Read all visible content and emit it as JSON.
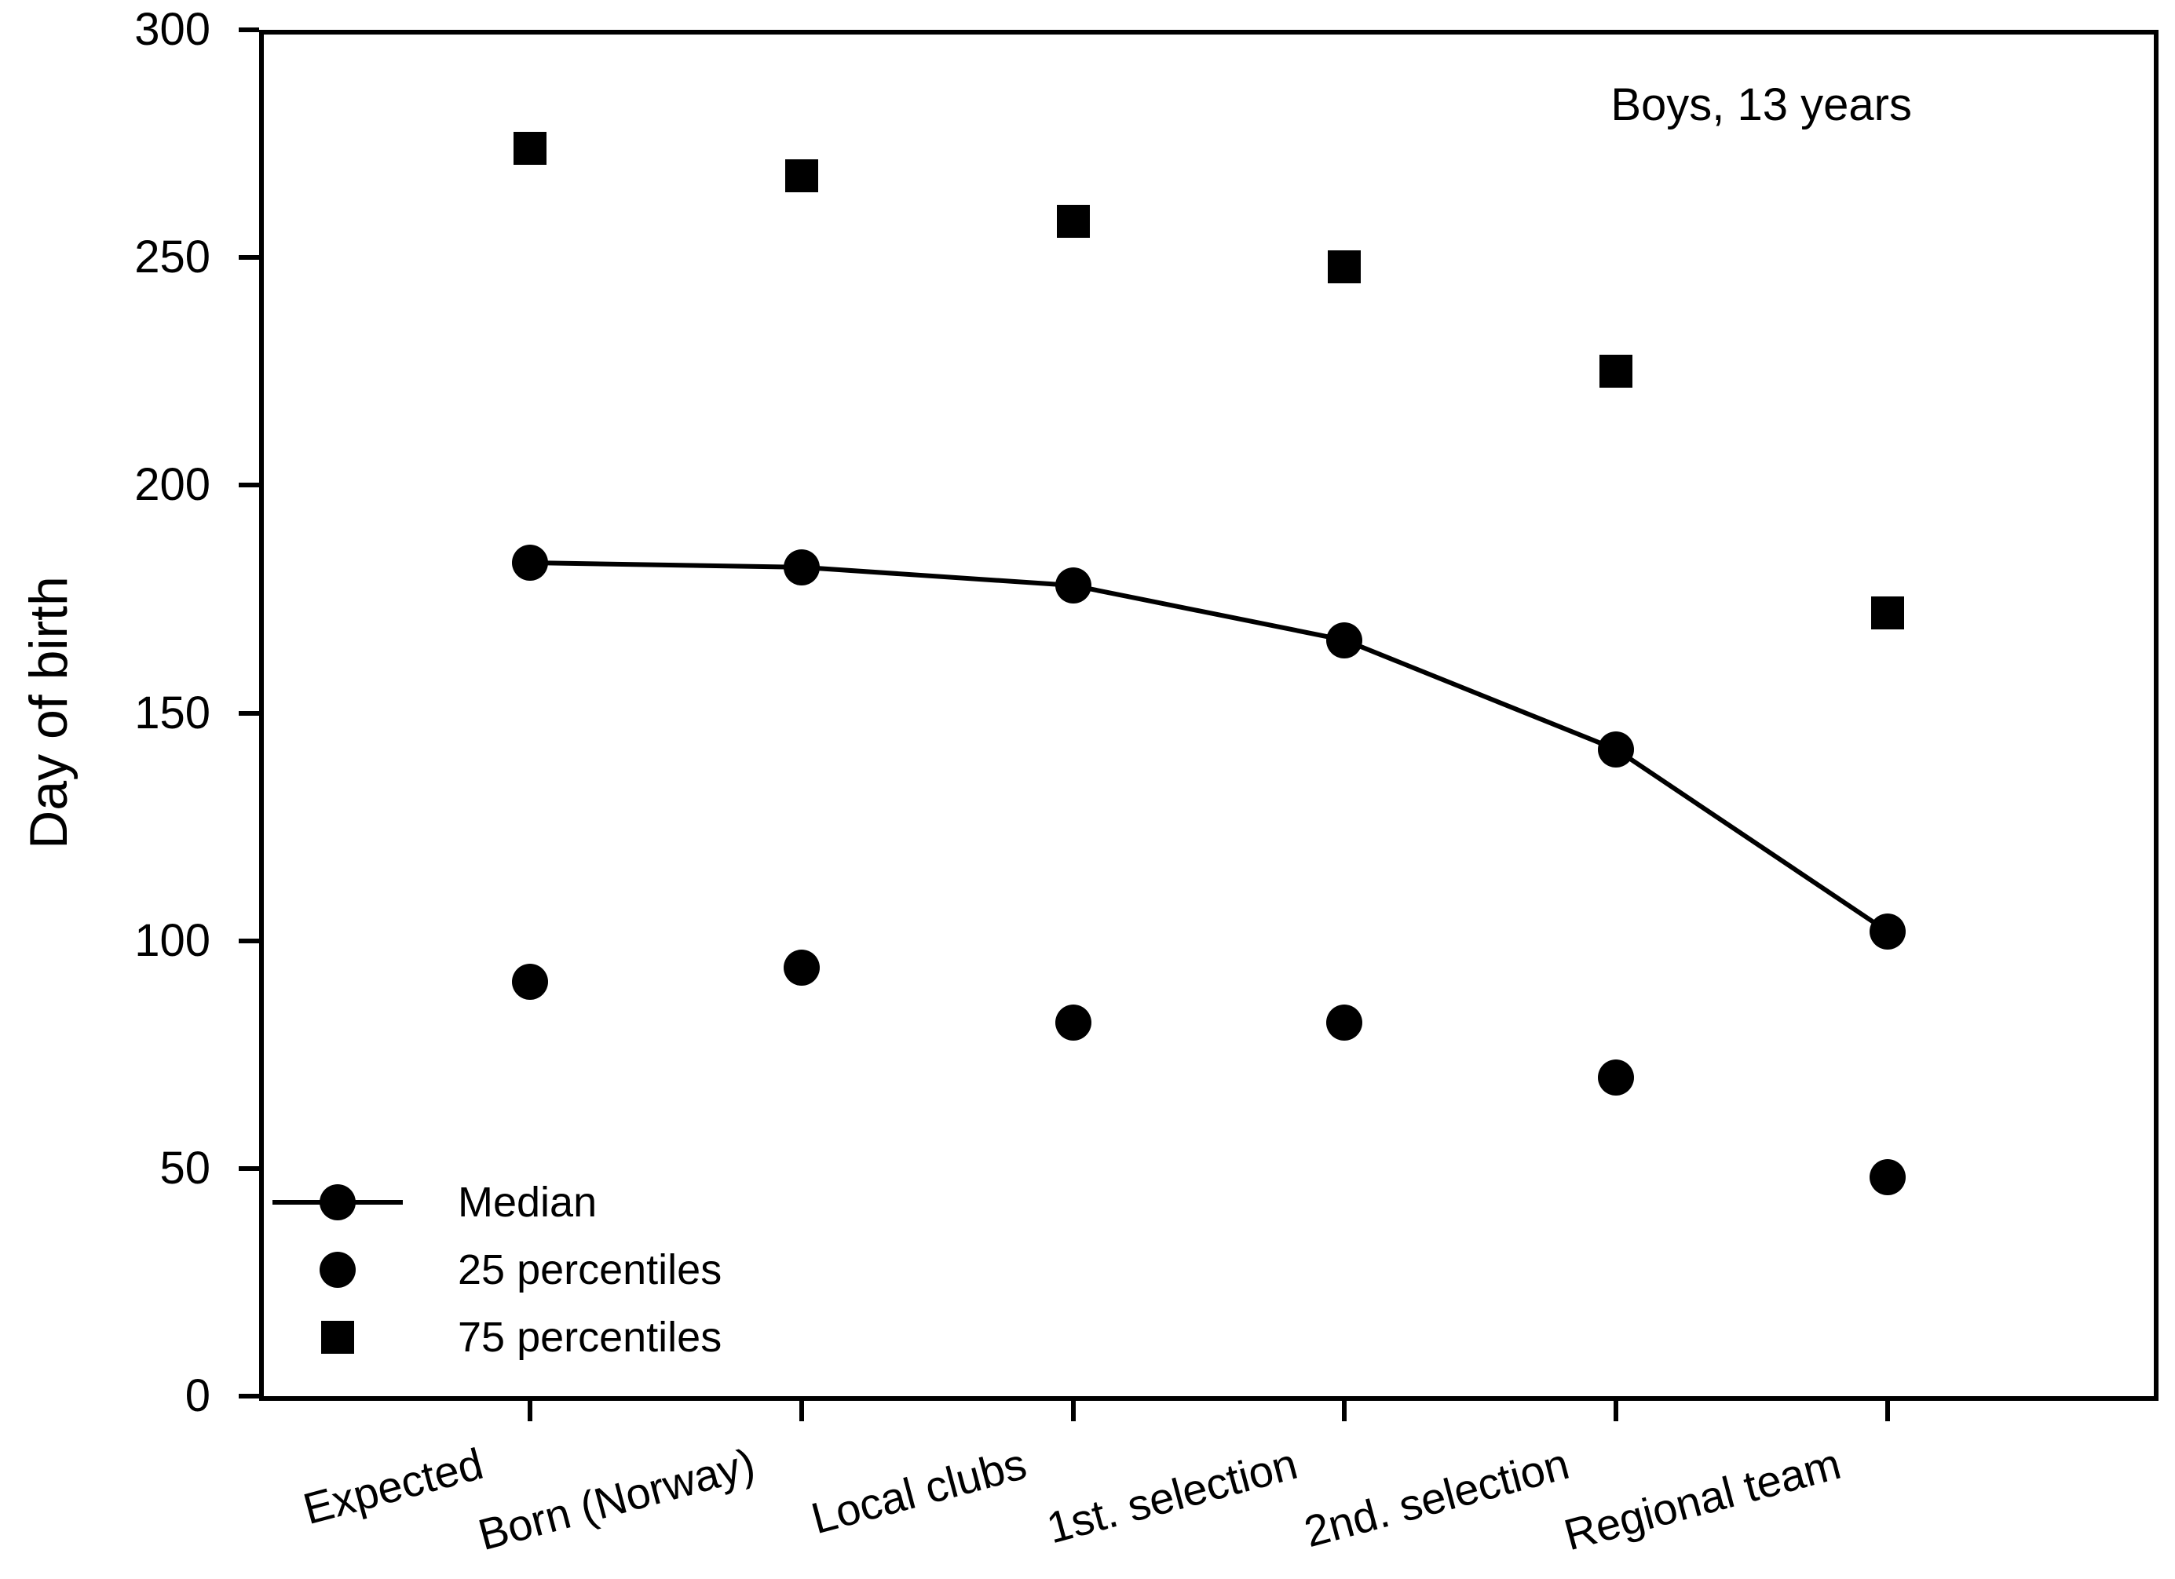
{
  "chart_data": {
    "type": "scatter",
    "title": "Boys, 13 years",
    "categories": [
      "Expected",
      "Born (Norway)",
      "Local clubs",
      "1st. selection",
      "2nd. selection",
      "Regional team"
    ],
    "series": [
      {
        "name": "Median",
        "marker": "circle",
        "connected_by_line": true,
        "values": [
          183,
          182,
          178,
          166,
          142,
          102
        ]
      },
      {
        "name": "25 percentiles",
        "marker": "circle",
        "connected_by_line": false,
        "values": [
          91,
          94,
          82,
          82,
          70,
          48
        ]
      },
      {
        "name": "75 percentiles",
        "marker": "square",
        "connected_by_line": false,
        "values": [
          274,
          268,
          258,
          248,
          225,
          172
        ]
      }
    ],
    "xlabel": "",
    "ylabel": "Day of birth",
    "ylim": [
      0,
      300
    ],
    "ytick_step": 50,
    "yticks": [
      0,
      50,
      100,
      150,
      200,
      250,
      300
    ],
    "grid": false,
    "legend_position": "lower-left",
    "x_tick_label_rotation_deg": -15,
    "colors": {
      "foreground": "#000000",
      "background": "#ffffff"
    }
  }
}
